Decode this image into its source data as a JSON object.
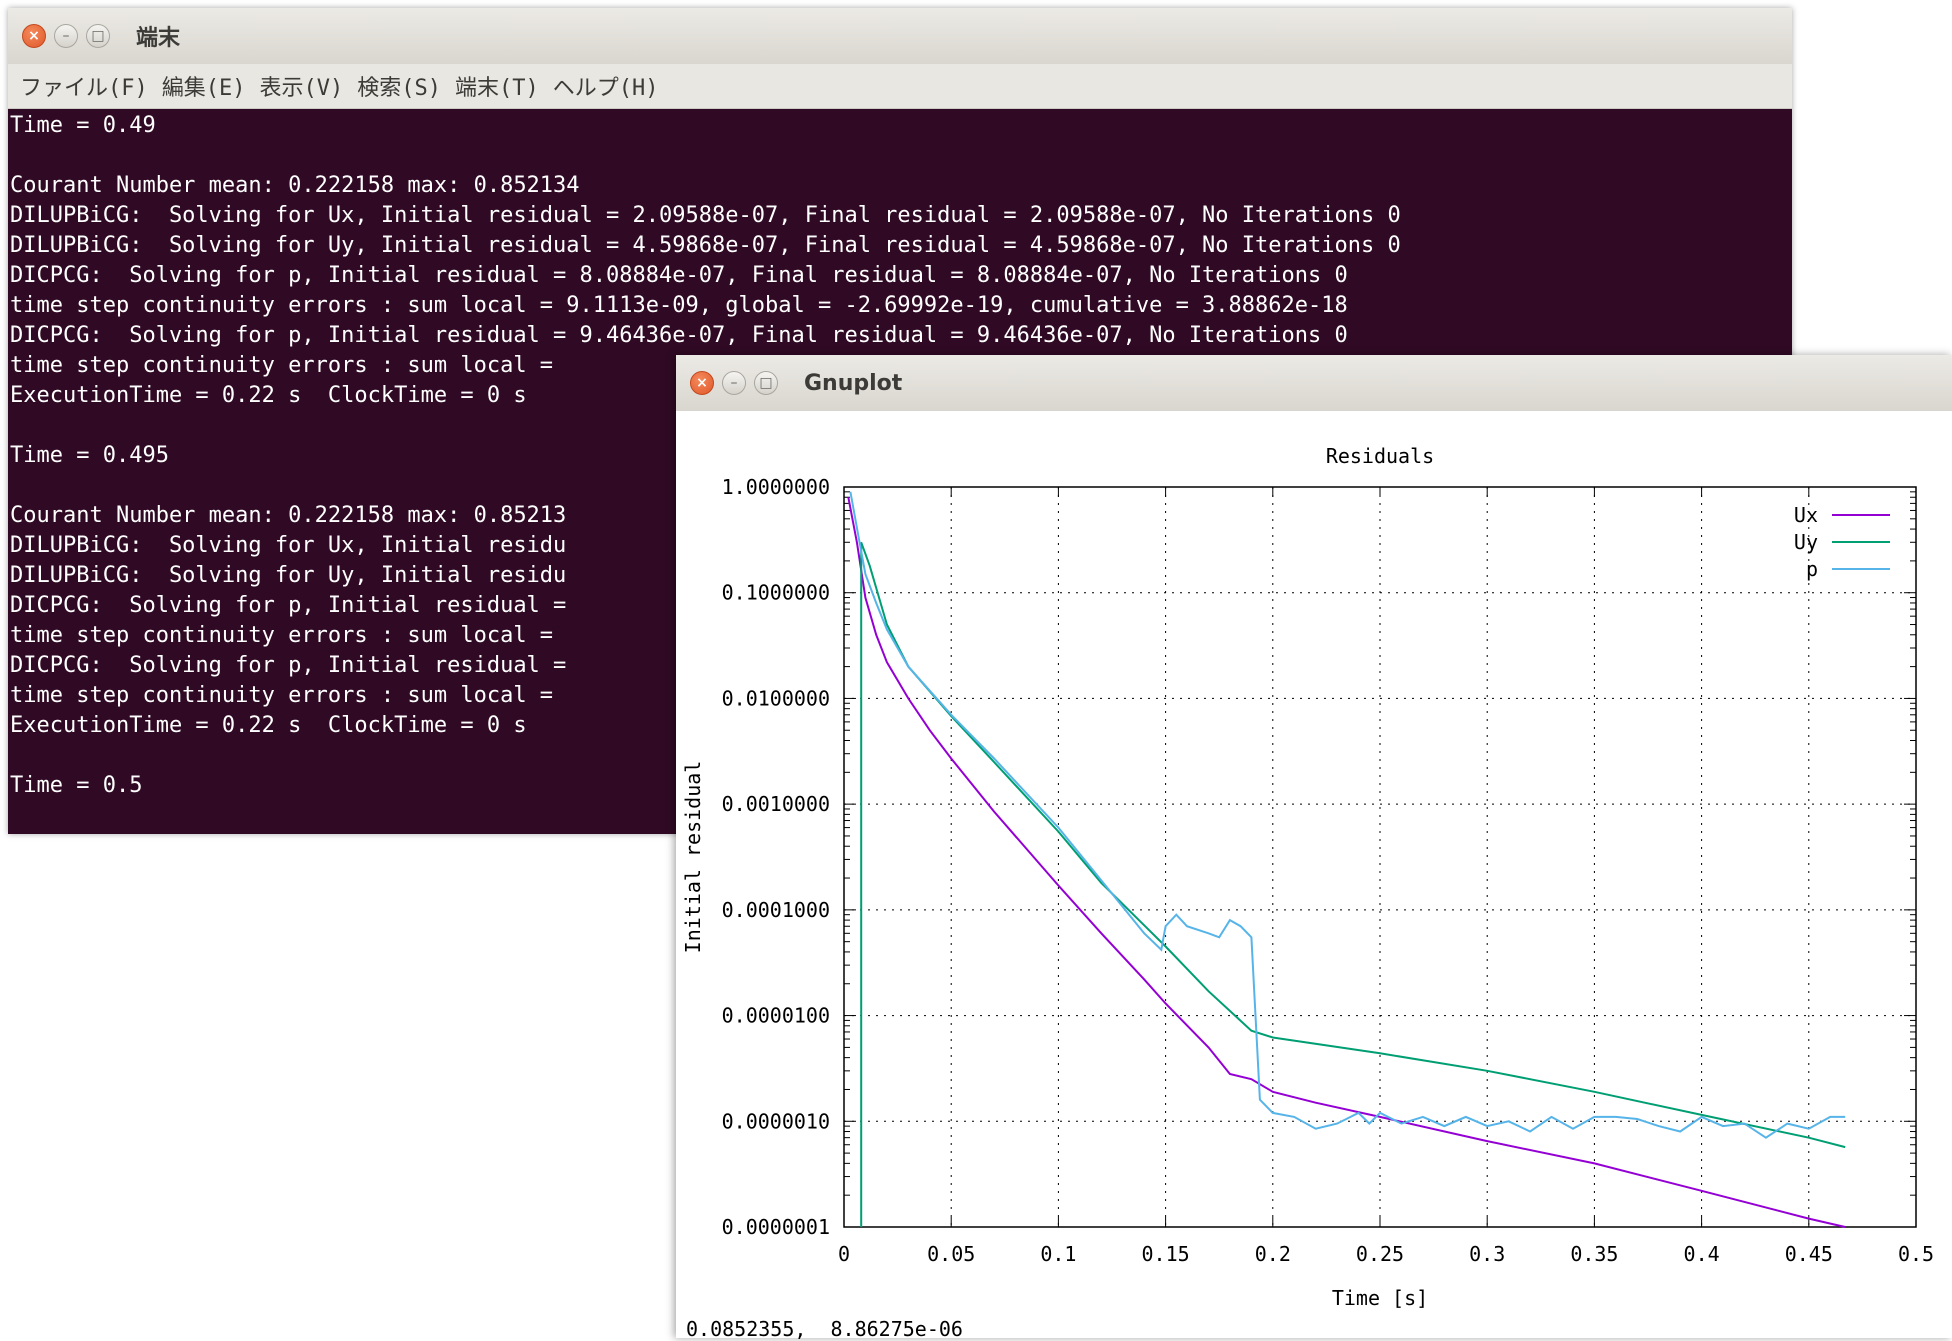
{
  "terminal": {
    "title": "端末",
    "menu": [
      "ファイル(F)",
      "編集(E)",
      "表示(V)",
      "検索(S)",
      "端末(T)",
      "ヘルプ(H)"
    ],
    "lines": [
      "Time = 0.49",
      "",
      "Courant Number mean: 0.222158 max: 0.852134",
      "DILUPBiCG:  Solving for Ux, Initial residual = 2.09588e-07, Final residual = 2.09588e-07, No Iterations 0",
      "DILUPBiCG:  Solving for Uy, Initial residual = 4.59868e-07, Final residual = 4.59868e-07, No Iterations 0",
      "DICPCG:  Solving for p, Initial residual = 8.08884e-07, Final residual = 8.08884e-07, No Iterations 0",
      "time step continuity errors : sum local = 9.1113e-09, global = -2.69992e-19, cumulative = 3.88862e-18",
      "DICPCG:  Solving for p, Initial residual = 9.46436e-07, Final residual = 9.46436e-07, No Iterations 0",
      "time step continuity errors : sum local =",
      "ExecutionTime = 0.22 s  ClockTime = 0 s",
      "",
      "Time = 0.495",
      "",
      "Courant Number mean: 0.222158 max: 0.85213",
      "DILUPBiCG:  Solving for Ux, Initial residu",
      "DILUPBiCG:  Solving for Uy, Initial residu",
      "DICPCG:  Solving for p, Initial residual =",
      "time step continuity errors : sum local =",
      "DICPCG:  Solving for p, Initial residual =",
      "time step continuity errors : sum local =",
      "ExecutionTime = 0.22 s  ClockTime = 0 s",
      "",
      "Time = 0.5"
    ]
  },
  "gnuplot": {
    "title": "Gnuplot",
    "status": "0.0852355,  8.86275e-06"
  },
  "chart_data": {
    "type": "line",
    "title": "Residuals",
    "xlabel": "Time [s]",
    "ylabel": "Initial residual",
    "xlim": [
      0,
      0.5
    ],
    "ylim": [
      1e-07,
      1
    ],
    "yscale": "log",
    "grid": true,
    "legend_position": "top-right",
    "x_ticks": [
      "0",
      "0.05",
      "0.1",
      "0.15",
      "0.2",
      "0.25",
      "0.3",
      "0.35",
      "0.4",
      "0.45",
      "0.5"
    ],
    "y_ticks": [
      "1.0000000",
      "0.1000000",
      "0.0100000",
      "0.0010000",
      "0.0001000",
      "0.0000100",
      "0.0000010",
      "0.0000001"
    ],
    "series": [
      {
        "name": "Ux",
        "color": "#9400d3",
        "points": [
          [
            0.002,
            0.8
          ],
          [
            0.006,
            0.3
          ],
          [
            0.01,
            0.09
          ],
          [
            0.015,
            0.04
          ],
          [
            0.02,
            0.022
          ],
          [
            0.03,
            0.01
          ],
          [
            0.04,
            0.005
          ],
          [
            0.05,
            0.0027
          ],
          [
            0.07,
            0.00085
          ],
          [
            0.1,
            0.00017
          ],
          [
            0.12,
            6e-05
          ],
          [
            0.14,
            2.2e-05
          ],
          [
            0.15,
            1.3e-05
          ],
          [
            0.17,
            5e-06
          ],
          [
            0.18,
            2.8e-06
          ],
          [
            0.19,
            2.5e-06
          ],
          [
            0.2,
            1.9e-06
          ],
          [
            0.22,
            1.5e-06
          ],
          [
            0.25,
            1.1e-06
          ],
          [
            0.3,
            6.5e-07
          ],
          [
            0.35,
            4e-07
          ],
          [
            0.4,
            2.2e-07
          ],
          [
            0.45,
            1.2e-07
          ],
          [
            0.467,
            1e-07
          ]
        ]
      },
      {
        "name": "Uy",
        "color": "#009e73",
        "points": [
          [
            0.008,
            1e-07
          ],
          [
            0.008,
            0.3
          ],
          [
            0.012,
            0.18
          ],
          [
            0.02,
            0.05
          ],
          [
            0.03,
            0.02
          ],
          [
            0.05,
            0.0068
          ],
          [
            0.07,
            0.0025
          ],
          [
            0.1,
            0.00055
          ],
          [
            0.12,
            0.00018
          ],
          [
            0.15,
            4.5e-05
          ],
          [
            0.17,
            1.7e-05
          ],
          [
            0.19,
            7.2e-06
          ],
          [
            0.2,
            6.2e-06
          ],
          [
            0.25,
            4.4e-06
          ],
          [
            0.3,
            3e-06
          ],
          [
            0.35,
            1.9e-06
          ],
          [
            0.4,
            1.15e-06
          ],
          [
            0.45,
            7e-07
          ],
          [
            0.467,
            5.7e-07
          ]
        ]
      },
      {
        "name": "p",
        "color": "#56b4e9",
        "points": [
          [
            0.003,
            0.9
          ],
          [
            0.007,
            0.32
          ],
          [
            0.01,
            0.15
          ],
          [
            0.015,
            0.08
          ],
          [
            0.02,
            0.045
          ],
          [
            0.03,
            0.02
          ],
          [
            0.05,
            0.007
          ],
          [
            0.07,
            0.0027
          ],
          [
            0.1,
            0.0006
          ],
          [
            0.12,
            0.00019
          ],
          [
            0.14,
            6e-05
          ],
          [
            0.148,
            4.2e-05
          ],
          [
            0.15,
            7e-05
          ],
          [
            0.155,
            9e-05
          ],
          [
            0.16,
            7e-05
          ],
          [
            0.17,
            6e-05
          ],
          [
            0.175,
            5.5e-05
          ],
          [
            0.18,
            8e-05
          ],
          [
            0.185,
            7e-05
          ],
          [
            0.19,
            5.5e-05
          ],
          [
            0.194,
            1.6e-06
          ],
          [
            0.2,
            1.2e-06
          ],
          [
            0.21,
            1.1e-06
          ],
          [
            0.22,
            8.5e-07
          ],
          [
            0.23,
            9.5e-07
          ],
          [
            0.24,
            1.2e-06
          ],
          [
            0.245,
            9.5e-07
          ],
          [
            0.25,
            1.2e-06
          ],
          [
            0.26,
            9.5e-07
          ],
          [
            0.27,
            1.1e-06
          ],
          [
            0.28,
            9e-07
          ],
          [
            0.29,
            1.1e-06
          ],
          [
            0.3,
            9e-07
          ],
          [
            0.31,
            1e-06
          ],
          [
            0.32,
            8e-07
          ],
          [
            0.33,
            1.1e-06
          ],
          [
            0.34,
            8.5e-07
          ],
          [
            0.35,
            1.1e-06
          ],
          [
            0.36,
            1.1e-06
          ],
          [
            0.37,
            1.05e-06
          ],
          [
            0.38,
            9e-07
          ],
          [
            0.39,
            8e-07
          ],
          [
            0.4,
            1.1e-06
          ],
          [
            0.41,
            9e-07
          ],
          [
            0.42,
            9.5e-07
          ],
          [
            0.43,
            7e-07
          ],
          [
            0.44,
            9.5e-07
          ],
          [
            0.45,
            8.5e-07
          ],
          [
            0.46,
            1.1e-06
          ],
          [
            0.467,
            1.1e-06
          ]
        ]
      }
    ]
  }
}
